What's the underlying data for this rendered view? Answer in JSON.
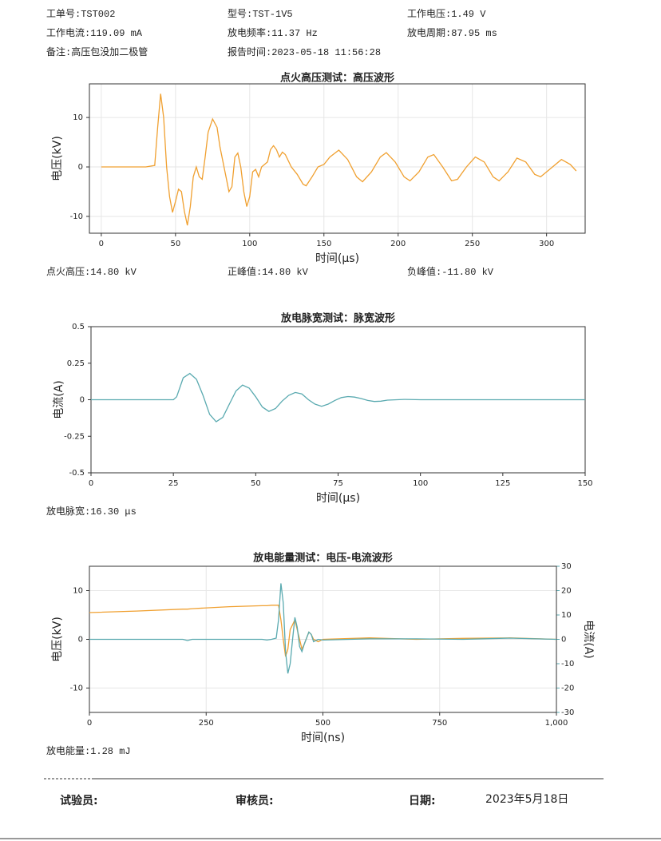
{
  "header": {
    "rows": [
      [
        "工单号:TST002",
        "型号:TST-1V5",
        "工作电压:1.49 V"
      ],
      [
        "工作电流:119.09 mA",
        "放电频率:11.37 Hz",
        "放电周期:87.95 ms"
      ],
      [
        "备注:高压包没加二极管",
        "报告时间:2023-05-18 11:56:28"
      ]
    ]
  },
  "chart_data": [
    {
      "type": "line",
      "title": "点火高压测试：高压波形",
      "x_label": "时间(μs)",
      "y_label": "电压(kV)",
      "grid": true,
      "xlim": [
        -8,
        326
      ],
      "ylim": [
        -13.4,
        16.8
      ],
      "xticks": [
        0,
        50,
        100,
        150,
        200,
        250,
        300
      ],
      "yticks": [
        -10,
        0,
        10
      ],
      "x": [
        0,
        10,
        20,
        30,
        36,
        38,
        40,
        42,
        44,
        46,
        48,
        50,
        52,
        54,
        56,
        58,
        60,
        62,
        64,
        66,
        68,
        70,
        72,
        75,
        78,
        80,
        84,
        86,
        88,
        90,
        92,
        94,
        96,
        98,
        100,
        102,
        104,
        106,
        108,
        112,
        114,
        116,
        118,
        120,
        122,
        124,
        128,
        132,
        136,
        138,
        142,
        146,
        150,
        154,
        160,
        166,
        172,
        176,
        182,
        188,
        192,
        198,
        204,
        208,
        214,
        220,
        224,
        230,
        236,
        240,
        246,
        252,
        258,
        264,
        268,
        274,
        280,
        286,
        292,
        296,
        302,
        310,
        316,
        320
      ],
      "series": [
        {
          "name": "电压",
          "color": "#f0a030",
          "values": [
            0,
            0,
            0,
            0,
            0.3,
            8,
            14.8,
            10,
            0,
            -6,
            -9.2,
            -7,
            -4.5,
            -5,
            -9,
            -11.8,
            -8,
            -2,
            0,
            -2,
            -2.5,
            2,
            7,
            9.7,
            8,
            4,
            -2,
            -5,
            -4,
            2,
            2.8,
            0,
            -5,
            -8,
            -6,
            -1,
            -0.5,
            -2,
            0,
            1,
            3.5,
            4.3,
            3.5,
            2,
            3,
            2.5,
            0,
            -1.5,
            -3.5,
            -3.8,
            -2,
            0,
            0.5,
            2,
            3.4,
            1.5,
            -2,
            -3,
            -1,
            2,
            2.9,
            1,
            -2,
            -2.8,
            -1,
            2,
            2.5,
            0,
            -2.8,
            -2.5,
            0,
            2,
            1,
            -2,
            -2.8,
            -1,
            1.8,
            1,
            -1.5,
            -2,
            -0.5,
            1.5,
            0.5,
            -0.8
          ]
        }
      ]
    },
    {
      "type": "line",
      "title": "放电脉宽测试：脉宽波形",
      "x_label": "时间(μs)",
      "y_label": "电流(A)",
      "grid": false,
      "xlim": [
        0,
        150
      ],
      "ylim": [
        -0.5,
        0.5
      ],
      "xticks": [
        0,
        25,
        50,
        75,
        100,
        125,
        150
      ],
      "yticks": [
        -0.5,
        -0.25,
        0,
        0.25,
        0.5
      ],
      "x": [
        0,
        10,
        20,
        25,
        26,
        28,
        30,
        32,
        34,
        36,
        38,
        40,
        42,
        44,
        46,
        48,
        50,
        52,
        54,
        56,
        58,
        60,
        62,
        64,
        66,
        68,
        70,
        72,
        74,
        76,
        78,
        80,
        82,
        84,
        86,
        88,
        90,
        95,
        100,
        110,
        120,
        130,
        140,
        150
      ],
      "series": [
        {
          "name": "电流",
          "color": "#5aaab0",
          "values": [
            0,
            0,
            0,
            0,
            0.02,
            0.15,
            0.18,
            0.14,
            0.03,
            -0.1,
            -0.15,
            -0.12,
            -0.03,
            0.06,
            0.1,
            0.08,
            0.02,
            -0.05,
            -0.08,
            -0.06,
            -0.01,
            0.03,
            0.05,
            0.04,
            0,
            -0.03,
            -0.045,
            -0.03,
            -0.005,
            0.015,
            0.022,
            0.018,
            0.008,
            -0.005,
            -0.012,
            -0.01,
            -0.003,
            0.002,
            0,
            0,
            0,
            0,
            0,
            0
          ]
        }
      ]
    },
    {
      "type": "line",
      "title": "放电能量测试：电压-电流波形",
      "x_label": "时间(ns)",
      "y_label": "电压(kV)",
      "y2_label": "电流(A)",
      "grid": true,
      "xlim": [
        0,
        1000
      ],
      "ylim": [
        -15,
        15
      ],
      "y2lim": [
        -30,
        30
      ],
      "xticks": [
        0,
        250,
        500,
        750,
        {
          "value": 1000,
          "label": "1,000"
        }
      ],
      "yticks": [
        -10,
        0,
        10
      ],
      "y2ticks": [
        -30,
        -20,
        -10,
        0,
        10,
        20,
        30
      ],
      "x": [
        0,
        100,
        200,
        210,
        220,
        300,
        370,
        380,
        390,
        400,
        405,
        410,
        415,
        420,
        425,
        430,
        435,
        440,
        445,
        450,
        455,
        460,
        470,
        475,
        480,
        490,
        500,
        600,
        700,
        800,
        900,
        1000
      ],
      "series": [
        {
          "name": "电压",
          "color": "#f0a030",
          "values": [
            5.5,
            5.8,
            6.2,
            6.2,
            6.3,
            6.7,
            6.9,
            6.9,
            7,
            7,
            7,
            4,
            0,
            -3.5,
            -2,
            2,
            3,
            4,
            2,
            0,
            -2,
            -1,
            1.5,
            1,
            0,
            -0.5,
            0,
            0.3,
            0,
            0.2,
            0.3,
            0
          ]
        },
        {
          "name": "电流",
          "color": "#5aaab0",
          "axis": "y2",
          "values": [
            0,
            0,
            0,
            -0.5,
            0,
            0,
            0,
            -0.3,
            0,
            0.5,
            8,
            23,
            15,
            -5,
            -14,
            -10,
            0,
            9,
            5,
            -3,
            -5,
            -2,
            3,
            2,
            -1,
            0,
            -0.3,
            0.2,
            0.2,
            0,
            0.5,
            0
          ]
        }
      ]
    }
  ],
  "results": [
    [
      "点火高压:14.80 kV",
      "正峰值:14.80 kV",
      "负峰值:-11.80 kV"
    ],
    [
      "放电脉宽:16.30 μs"
    ],
    [
      "放电能量:1.28 mJ"
    ]
  ],
  "footer": {
    "tester": "试验员:",
    "reviewer": "审核员:",
    "date_label": "日期:",
    "date": "2023年5月18日"
  }
}
